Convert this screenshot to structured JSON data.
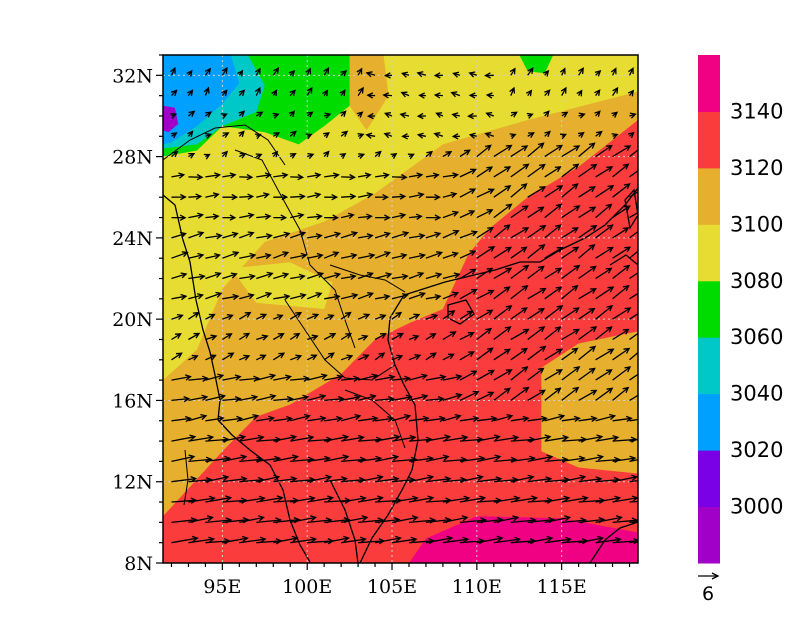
{
  "chart_data": {
    "type": "heatmap",
    "title": "",
    "xlabel": "",
    "ylabel": "",
    "xlim": [
      91.5,
      119.5
    ],
    "ylim": [
      8,
      33
    ],
    "x_ticks": [
      {
        "value": 95,
        "label": "95E"
      },
      {
        "value": 100,
        "label": "100E"
      },
      {
        "value": 105,
        "label": "105E"
      },
      {
        "value": 110,
        "label": "110E"
      },
      {
        "value": 115,
        "label": "115E"
      }
    ],
    "y_ticks": [
      {
        "value": 8,
        "label": "8N"
      },
      {
        "value": 12,
        "label": "12N"
      },
      {
        "value": 16,
        "label": "16N"
      },
      {
        "value": 20,
        "label": "20N"
      },
      {
        "value": 24,
        "label": "24N"
      },
      {
        "value": 28,
        "label": "28N"
      },
      {
        "value": 32,
        "label": "32N"
      }
    ],
    "grid": true,
    "colorbar": {
      "placement": "right",
      "boundaries": [
        2980,
        3000,
        3020,
        3040,
        3060,
        3080,
        3100,
        3120,
        3140,
        3160
      ],
      "colors": [
        "#a000c8",
        "#7a00e6",
        "#00a0ff",
        "#00c8c8",
        "#00dc00",
        "#e6dc32",
        "#e6af2d",
        "#fa3c3c",
        "#f00082"
      ],
      "tick_labels": [
        "3000",
        "3020",
        "3040",
        "3060",
        "3080",
        "3100",
        "3120",
        "3140"
      ]
    },
    "vector_reference": {
      "label": "6",
      "magnitude": 6
    },
    "regions": [
      {
        "level": 3100,
        "color": "#e6af2d",
        "polygon": [
          [
            91.5,
            8
          ],
          [
            119.5,
            8
          ],
          [
            119.5,
            33
          ],
          [
            91.5,
            33
          ]
        ]
      },
      {
        "level": 3090,
        "color": "#e6dc32",
        "polygon": [
          [
            91.5,
            33
          ],
          [
            119.5,
            33
          ],
          [
            119.5,
            31.2
          ],
          [
            113,
            29.8
          ],
          [
            108,
            28.6
          ],
          [
            104,
            26.2
          ],
          [
            101,
            24.8
          ],
          [
            97.5,
            23.8
          ],
          [
            95,
            21.5
          ],
          [
            93.5,
            18.5
          ],
          [
            91.5,
            17
          ]
        ]
      },
      {
        "level": 3090,
        "color": "#e6dc32",
        "polygon": [
          [
            95.5,
            22.5
          ],
          [
            99,
            22.8
          ],
          [
            101.5,
            21.8
          ],
          [
            101,
            20.5
          ],
          [
            97,
            20.8
          ]
        ]
      },
      {
        "level": 3110,
        "color": "#e6af2d",
        "polygon": [
          [
            102.5,
            33
          ],
          [
            104.5,
            33
          ],
          [
            104.8,
            31
          ],
          [
            103.5,
            29.3
          ],
          [
            102.5,
            30.5
          ]
        ]
      },
      {
        "level": 3130,
        "color": "#fa3c3c",
        "polygon": [
          [
            91.5,
            8
          ],
          [
            106,
            8
          ],
          [
            109,
            9
          ],
          [
            113,
            9.5
          ],
          [
            119.5,
            9.5
          ],
          [
            119.5,
            29.8
          ],
          [
            116,
            27.5
          ],
          [
            113,
            26
          ],
          [
            110.8,
            24.5
          ],
          [
            109.5,
            23.2
          ],
          [
            108,
            20.5
          ],
          [
            106,
            19.8
          ],
          [
            104,
            19
          ],
          [
            102,
            17.3
          ],
          [
            99,
            15.8
          ],
          [
            97,
            15.2
          ],
          [
            95,
            13.5
          ],
          [
            91.5,
            10.3
          ]
        ]
      },
      {
        "level": 3110,
        "color": "#e6af2d",
        "polygon": [
          [
            119.5,
            19.4
          ],
          [
            116,
            18.8
          ],
          [
            113.8,
            17.6
          ],
          [
            113.8,
            13.5
          ],
          [
            116,
            12.7
          ],
          [
            119.5,
            12.4
          ]
        ]
      },
      {
        "level": 3150,
        "color": "#f00082",
        "polygon": [
          [
            106,
            8
          ],
          [
            119.5,
            8
          ],
          [
            119.5,
            9.5
          ],
          [
            115,
            10.2
          ],
          [
            110,
            10.3
          ],
          [
            107,
            9.2
          ]
        ]
      },
      {
        "level": 3070,
        "color": "#00dc00",
        "polygon": [
          [
            91.5,
            33
          ],
          [
            102.5,
            33
          ],
          [
            102.5,
            30.5
          ],
          [
            101,
            29.5
          ],
          [
            99.5,
            28.6
          ],
          [
            97.5,
            29.2
          ],
          [
            95,
            29.5
          ],
          [
            93.5,
            28.3
          ],
          [
            91.5,
            28
          ]
        ]
      },
      {
        "level": 3070,
        "color": "#00dc00",
        "polygon": [
          [
            112.5,
            33
          ],
          [
            114.5,
            33
          ],
          [
            114,
            32.1
          ],
          [
            113,
            32.2
          ]
        ]
      },
      {
        "level": 3050,
        "color": "#00c8c8",
        "polygon": [
          [
            91.5,
            33
          ],
          [
            96.5,
            33
          ],
          [
            97.5,
            31.5
          ],
          [
            97,
            30.2
          ],
          [
            95,
            29.5
          ],
          [
            93.5,
            28.6
          ],
          [
            91.5,
            28.4
          ]
        ]
      },
      {
        "level": 3030,
        "color": "#00a0ff",
        "polygon": [
          [
            91.5,
            33
          ],
          [
            95.5,
            33
          ],
          [
            96,
            31.6
          ],
          [
            95,
            30.6
          ],
          [
            93.5,
            29.5
          ],
          [
            92,
            28.7
          ],
          [
            91.5,
            28.6
          ]
        ]
      },
      {
        "level": 3010,
        "color": "#a000c8",
        "polygon": [
          [
            91.5,
            30.5
          ],
          [
            92.2,
            30.4
          ],
          [
            92.4,
            29.6
          ],
          [
            91.8,
            29.2
          ],
          [
            91.5,
            29.3
          ]
        ]
      }
    ],
    "vector_field": {
      "lon": [
        92,
        93,
        94,
        95,
        96,
        97,
        98,
        99,
        100,
        101,
        102,
        103,
        104,
        105,
        106,
        107,
        108,
        109,
        110,
        111,
        112,
        113,
        114,
        115,
        116,
        117,
        118,
        119
      ],
      "lat": [
        9,
        10,
        11,
        12,
        13,
        14,
        15,
        16,
        17,
        18,
        19,
        20,
        21,
        22,
        23,
        24,
        25,
        26,
        27,
        28,
        29,
        30,
        31,
        32
      ],
      "bands": [
        {
          "lat_max": 11,
          "u": 7.5,
          "v": 1.0
        },
        {
          "lat_max": 14,
          "u": 7.0,
          "v": 1.0
        },
        {
          "lat_max": 17,
          "u": 5.5,
          "v": 1.0
        },
        {
          "lat_max": 20,
          "u": 3.0,
          "v": 1.5
        },
        {
          "lat_max": 24,
          "u": 4.5,
          "v": 1.2
        },
        {
          "lat_max": 27,
          "u": 4.0,
          "v": 0.4
        },
        {
          "lat_max": 30,
          "u": 1.5,
          "v": 1.0
        },
        {
          "lat_max": 33,
          "u": 1.2,
          "v": 1.8
        }
      ],
      "east_of_107_above_16": {
        "u": 5.0,
        "v": 3.5
      },
      "north_east_easterlies": {
        "lat_min": 28.5,
        "lon_min": 104,
        "lon_max": 111,
        "u": -2.2,
        "v": 0.4
      }
    }
  }
}
